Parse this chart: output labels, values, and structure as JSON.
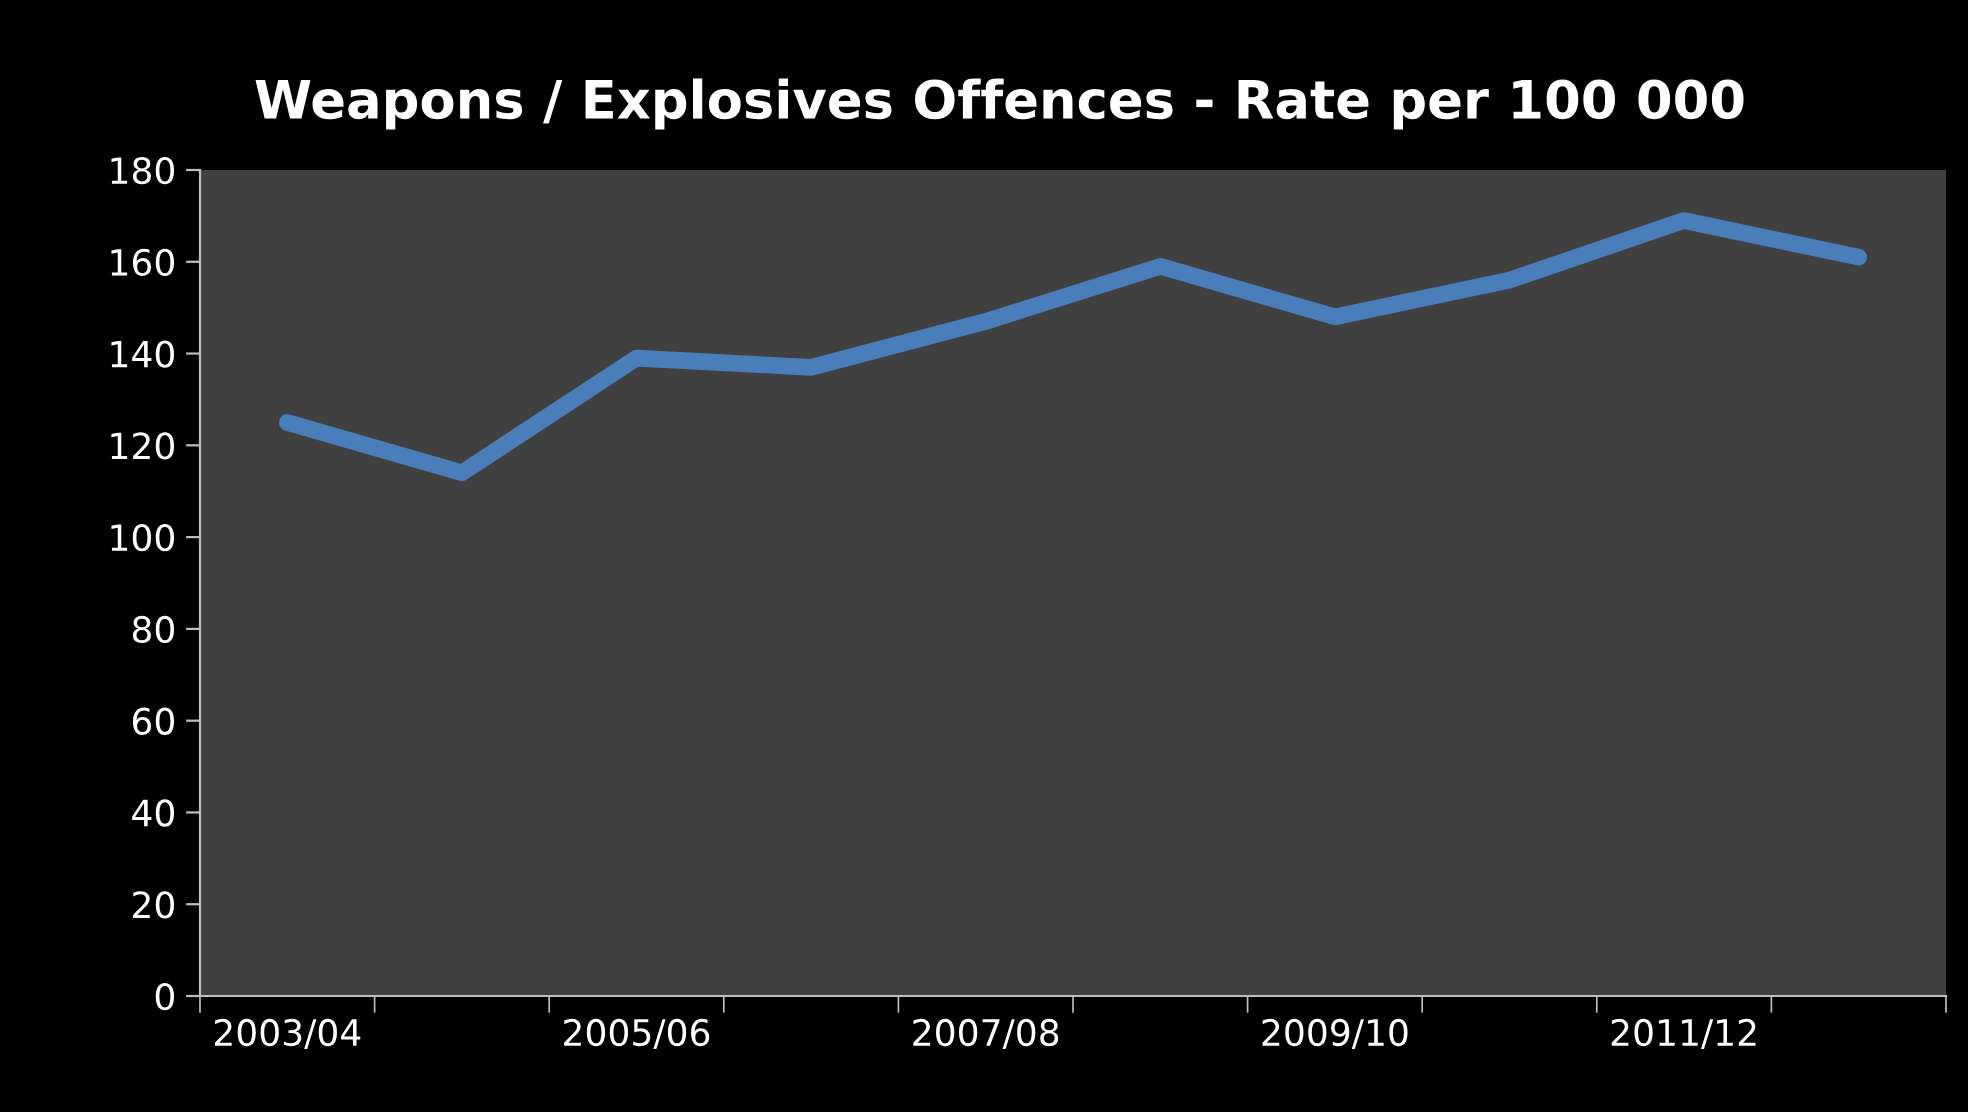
{
  "chart_data": {
    "type": "line",
    "title": "Weapons / Explosives Offences - Rate per 100 000",
    "categories": [
      "2003/04",
      null,
      "2005/06",
      null,
      "2007/08",
      null,
      "2009/10",
      null,
      "2011/12",
      null
    ],
    "series": [
      {
        "color": "#4a7ebb",
        "values": [
          125,
          114,
          139,
          137,
          147,
          159,
          148,
          156,
          169,
          161
        ]
      }
    ],
    "ylim": [
      0,
      180
    ],
    "yticks": [
      0,
      20,
      40,
      60,
      80,
      100,
      120,
      140,
      160,
      180
    ],
    "grid": false,
    "legend": false,
    "marker": "none",
    "line_style": "solid"
  }
}
